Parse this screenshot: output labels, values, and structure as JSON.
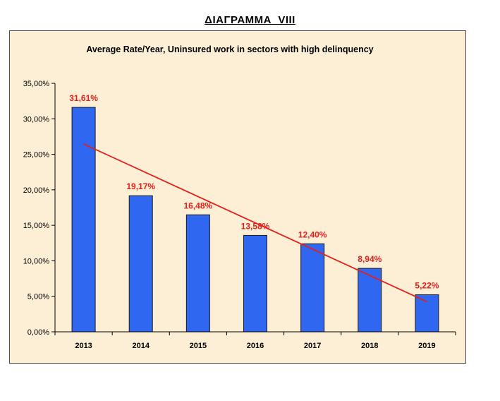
{
  "page": {
    "heading": "ΔΙΑΓΡΑΜΜΑ  VIII"
  },
  "chart_data": {
    "type": "bar",
    "title": "Average Rate/Year, Uninsured work in sectors with high delinquency",
    "xlabel": "",
    "ylabel": "",
    "categories": [
      "2013",
      "2014",
      "2015",
      "2016",
      "2017",
      "2018",
      "2019"
    ],
    "series": [
      {
        "values": [
          31.61,
          19.17,
          16.48,
          13.58,
          12.4,
          8.94,
          5.22
        ],
        "data_labels": [
          "31,61%",
          "19,17%",
          "16,48%",
          "13,58%",
          "12,40%",
          "8,94%",
          "5,22%"
        ],
        "color": "#2f67f0"
      }
    ],
    "trendline": {
      "type": "linear",
      "color": "#e3201b"
    },
    "ylim": [
      0,
      35
    ],
    "y_ticks": [
      0,
      5,
      10,
      15,
      20,
      25,
      30,
      35
    ],
    "y_tick_labels": [
      "0,00%",
      "5,00%",
      "10,00%",
      "15,00%",
      "20,00%",
      "25,00%",
      "30,00%",
      "35,00%"
    ],
    "grid": false,
    "legend": "none",
    "colors": {
      "plot_background": "#fcefd6",
      "bar": "#2f67f0",
      "bar_border": "#1a1a1a",
      "data_label": "#e3201b",
      "trendline": "#e3201b"
    }
  }
}
